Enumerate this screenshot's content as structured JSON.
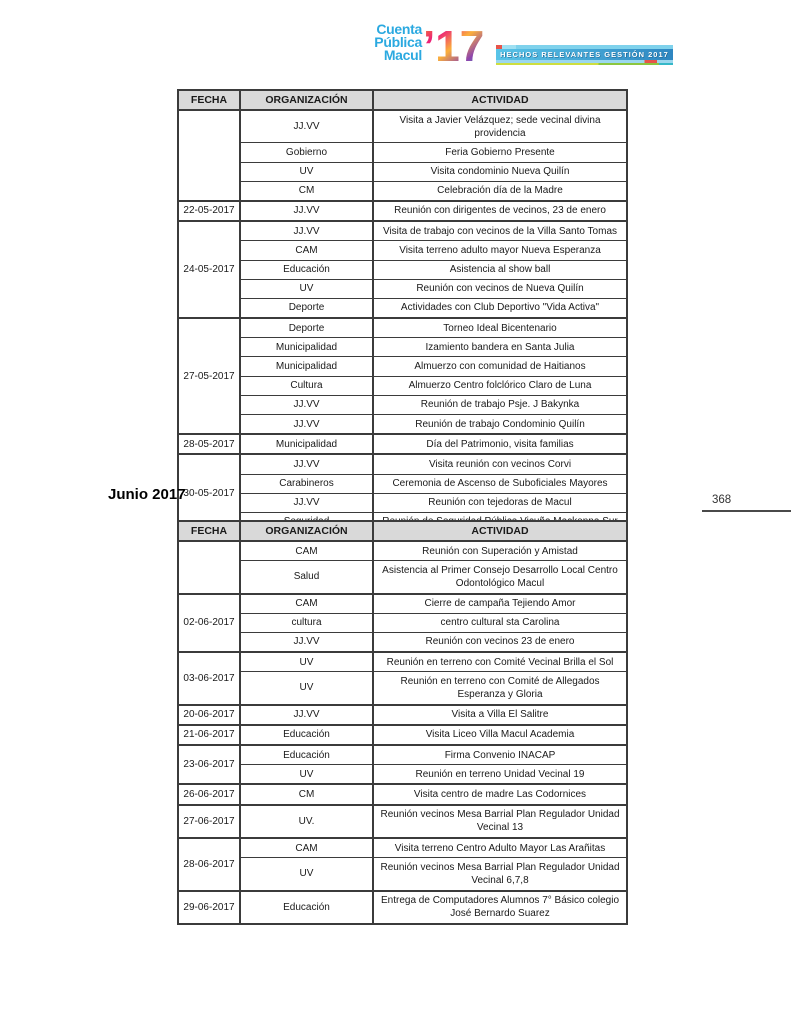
{
  "logo": {
    "line1": "Cuenta",
    "line2": "Pública",
    "line3": "Macul",
    "year": "’17",
    "text_color": "#2BA9E0",
    "year_colors": [
      "#F7931E",
      "#EC1E79",
      "#FBB03B",
      "#8E44AD",
      "#29B8CE"
    ]
  },
  "banner": {
    "text": "HECHOS RELEVANTES GESTIÓN 2017",
    "band_color": "#3FA9D8"
  },
  "page_number": "368",
  "section_heading": "Junio 2017",
  "tables": [
    {
      "name": "mayo-2017",
      "headers": [
        "FECHA",
        "ORGANIZACIÓN",
        "ACTIVIDAD"
      ],
      "groups": [
        {
          "fecha": "",
          "rows": [
            {
              "org": "JJ.VV",
              "act": "Visita a Javier Velázquez; sede vecinal divina providencia"
            },
            {
              "org": "Gobierno",
              "act": "Feria Gobierno Presente"
            },
            {
              "org": "UV",
              "act": "Visita condominio Nueva Quilín"
            },
            {
              "org": "CM",
              "act": "Celebración día de la Madre"
            }
          ]
        },
        {
          "fecha": "22-05-2017",
          "rows": [
            {
              "org": "JJ.VV",
              "act": "Reunión con dirigentes de vecinos, 23 de enero"
            }
          ]
        },
        {
          "fecha": "24-05-2017",
          "rows": [
            {
              "org": "JJ.VV",
              "act": "Visita de trabajo con vecinos de la Villa Santo Tomas"
            },
            {
              "org": "CAM",
              "act": "Visita terreno adulto mayor Nueva Esperanza"
            },
            {
              "org": "Educación",
              "act": "Asistencia al show ball"
            },
            {
              "org": "UV",
              "act": "Reunión con vecinos de Nueva Quilín"
            },
            {
              "org": "Deporte",
              "act": "Actividades con Club Deportivo \"Vida Activa\""
            }
          ]
        },
        {
          "fecha": "27-05-2017",
          "rows": [
            {
              "org": "Deporte",
              "act": "Torneo Ideal Bicentenario"
            },
            {
              "org": "Municipalidad",
              "act": "Izamiento bandera en Santa Julia"
            },
            {
              "org": "Municipalidad",
              "act": "Almuerzo con comunidad de Haitianos"
            },
            {
              "org": "Cultura",
              "act": "Almuerzo Centro folclórico Claro de Luna"
            },
            {
              "org": "JJ.VV",
              "act": "Reunión de trabajo Psje. J Bakynka"
            },
            {
              "org": "JJ.VV",
              "act": "Reunión de trabajo Condominio Quilín"
            }
          ]
        },
        {
          "fecha": "28-05-2017",
          "rows": [
            {
              "org": "Municipalidad",
              "act": "Día del Patrimonio, visita familias"
            }
          ]
        },
        {
          "fecha": "30-05-2017",
          "rows": [
            {
              "org": "JJ.VV",
              "act": "Visita reunión con vecinos Corvi"
            },
            {
              "org": "Carabineros",
              "act": "Ceremonia de Ascenso de Suboficiales Mayores"
            },
            {
              "org": "JJ.VV",
              "act": "Reunión con tejedoras de Macul"
            },
            {
              "org": "Seguridad",
              "act": "Reunión de Seguridad Pública Vicuña Mackenna Sur"
            }
          ]
        }
      ]
    },
    {
      "name": "junio-2017",
      "headers": [
        "FECHA",
        "ORGANIZACIÓN",
        "ACTIVIDAD"
      ],
      "groups": [
        {
          "fecha": "",
          "rows": [
            {
              "org": "CAM",
              "act": "Reunión con Superación y Amistad"
            },
            {
              "org": "Salud",
              "act": "Asistencia al Primer Consejo Desarrollo Local Centro Odontológico Macul"
            }
          ]
        },
        {
          "fecha": "02-06-2017",
          "rows": [
            {
              "org": "CAM",
              "act": "Cierre de campaña Tejiendo Amor"
            },
            {
              "org": "cultura",
              "act": "centro cultural sta Carolina"
            },
            {
              "org": "JJ.VV",
              "act": "Reunión con vecinos 23 de enero"
            }
          ]
        },
        {
          "fecha": "03-06-2017",
          "rows": [
            {
              "org": "UV",
              "act": "Reunión en terreno con Comité Vecinal Brilla el Sol"
            },
            {
              "org": "UV",
              "act": "Reunión en terreno con Comité de Allegados Esperanza y Gloria"
            }
          ]
        },
        {
          "fecha": "20-06-2017",
          "rows": [
            {
              "org": "JJ.VV",
              "act": "Visita a Villa El Salitre"
            }
          ]
        },
        {
          "fecha": "21-06-2017",
          "rows": [
            {
              "org": "Educación",
              "act": "Visita Liceo Villa Macul Academia"
            }
          ]
        },
        {
          "fecha": "23-06-2017",
          "rows": [
            {
              "org": "Educación",
              "act": "Firma Convenio INACAP"
            },
            {
              "org": "UV",
              "act": "Reunión en terreno Unidad Vecinal 19"
            }
          ]
        },
        {
          "fecha": "26-06-2017",
          "rows": [
            {
              "org": "CM",
              "act": "Visita centro de madre Las Codornices"
            }
          ]
        },
        {
          "fecha": "27-06-2017",
          "rows": [
            {
              "org": "UV.",
              "act": "Reunión vecinos Mesa Barrial Plan Regulador Unidad Vecinal 13"
            }
          ]
        },
        {
          "fecha": "28-06-2017",
          "rows": [
            {
              "org": "CAM",
              "act": "Visita terreno Centro Adulto Mayor Las Arañitas"
            },
            {
              "org": "UV",
              "act": "Reunión vecinos Mesa Barrial Plan Regulador Unidad Vecinal 6,7,8"
            }
          ]
        },
        {
          "fecha": "29-06-2017",
          "rows": [
            {
              "org": "Educación",
              "act": "Entrega de Computadores Alumnos 7° Básico colegio José Bernardo Suarez"
            }
          ]
        }
      ]
    }
  ]
}
